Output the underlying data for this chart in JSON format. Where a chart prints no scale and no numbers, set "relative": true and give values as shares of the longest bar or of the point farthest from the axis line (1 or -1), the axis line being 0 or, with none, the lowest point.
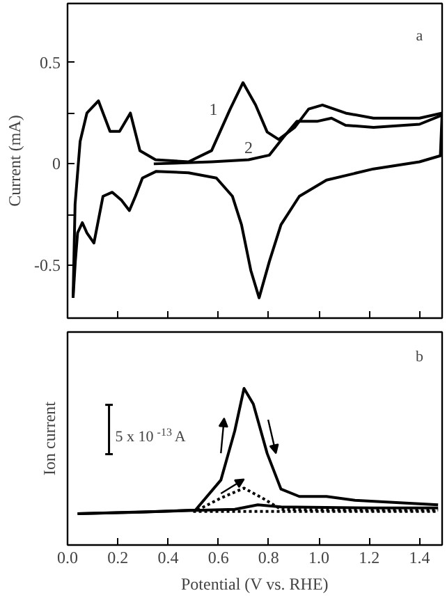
{
  "chart_data": [
    {
      "type": "line",
      "ylabel": "Current (mA)",
      "xlim": [
        0,
        1.49
      ],
      "ylim": [
        -0.76,
        0.79
      ],
      "xticks": [
        {
          "value": 0,
          "label": null
        },
        {
          "value": 0.2,
          "label": null
        },
        {
          "value": 0.4,
          "label": null
        },
        {
          "value": 0.6,
          "label": null
        },
        {
          "value": 0.8,
          "label": null
        },
        {
          "value": 1,
          "label": null
        },
        {
          "value": 1.2,
          "label": null
        },
        {
          "value": 1.4,
          "label": null
        }
      ],
      "yticks": [
        -0.5,
        {
          "value": -0.25,
          "label": null
        },
        0,
        {
          "value": 0.25,
          "label": null
        },
        0.5
      ],
      "tick_labels": "y",
      "grid": false,
      "annotations": [
        "a",
        "1",
        "2"
      ],
      "series": [
        {
          "color": "#000000",
          "line_style": "solid",
          "x": [
            0.022,
            0.031,
            0.04,
            0.059,
            0.077,
            0.105,
            0.141,
            0.178,
            0.215,
            0.246,
            0.27,
            0.298,
            0.353,
            0.481,
            0.592,
            0.656,
            0.692,
            0.729,
            0.762,
            0.803,
            0.849,
            0.922,
            1.03,
            1.217,
            1.4,
            1.483,
            1.49
          ],
          "values": [
            -0.66,
            -0.48,
            -0.34,
            -0.29,
            -0.34,
            -0.39,
            -0.16,
            -0.14,
            -0.18,
            -0.23,
            -0.16,
            -0.07,
            -0.037,
            -0.044,
            -0.07,
            -0.16,
            -0.3,
            -0.525,
            -0.66,
            -0.48,
            -0.3,
            -0.16,
            -0.08,
            -0.025,
            0.01,
            0.04,
            0.25
          ]
        },
        {
          "color": "#000000",
          "line_style": "solid",
          "x": [
            0.022,
            0.03,
            0.05,
            0.077,
            0.123,
            0.169,
            0.207,
            0.25,
            0.288,
            0.35,
            0.481,
            0.573,
            0.647,
            0.698,
            0.748,
            0.794,
            0.84,
            0.904,
            0.959,
            1.014,
            1.106,
            1.217,
            1.4,
            1.49
          ],
          "values": [
            -0.66,
            -0.2,
            0.11,
            0.25,
            0.31,
            0.16,
            0.16,
            0.25,
            0.065,
            0.02,
            0.01,
            0.065,
            0.27,
            0.4,
            0.29,
            0.157,
            0.12,
            0.18,
            0.27,
            0.29,
            0.25,
            0.225,
            0.225,
            0.25
          ]
        },
        {
          "color": "#000000",
          "line_style": "solid",
          "x": [
            0.343,
            0.573,
            0.72,
            0.803,
            0.858,
            0.913,
            0.995,
            1.05,
            1.106,
            1.217,
            1.4,
            1.49
          ],
          "values": [
            0.0,
            0.01,
            0.02,
            0.043,
            0.13,
            0.21,
            0.21,
            0.225,
            0.19,
            0.18,
            0.195,
            0.24
          ]
        }
      ]
    },
    {
      "type": "line",
      "ylabel": "Ion current",
      "xlabel": "Potential (V vs. RHE)",
      "relative": true,
      "xlim": [
        0,
        1.49
      ],
      "xticks": [
        {
          "value": 0,
          "label": "0.0"
        },
        0.2,
        0.4,
        0.6,
        0.8,
        {
          "value": 1,
          "label": "1.0"
        },
        1.2,
        1.4
      ],
      "tick_labels": "x",
      "grid": false,
      "annotations": [
        "b",
        "5 x 10$^{-13}$A"
      ],
      "series": [
        {
          "color": "#000000",
          "line_style": "solid",
          "x": [
            0.04,
            0.298,
            0.509,
            0.61,
            0.665,
            0.702,
            0.739,
            0.794,
            0.849,
            0.922,
            1.03,
            1.143,
            1.308,
            1.474
          ],
          "values": [
            0.2,
            0.21,
            0.223,
            0.415,
            0.728,
            1.0,
            0.9,
            0.585,
            0.357,
            0.31,
            0.31,
            0.286,
            0.271,
            0.257
          ]
        },
        {
          "color": "#000000",
          "line_style": "solid",
          "x": [
            0.04,
            0.481,
            0.665,
            0.757,
            0.849,
            1.217,
            1.474
          ],
          "values": [
            0.2,
            0.22,
            0.228,
            0.257,
            0.243,
            0.237,
            0.237
          ]
        },
        {
          "color": "#000000",
          "line_style": "dotted",
          "x": [
            0.517,
            0.61,
            0.702,
            0.775,
            0.849,
            1.03,
            1.474
          ],
          "values": [
            0.223,
            0.3,
            0.363,
            0.3,
            0.228,
            0.223,
            0.223
          ]
        },
        {
          "color": "#000000",
          "line_style": "dotted",
          "x": [
            0.5,
            1.474
          ],
          "values": [
            0.214,
            0.214
          ]
        }
      ]
    }
  ]
}
